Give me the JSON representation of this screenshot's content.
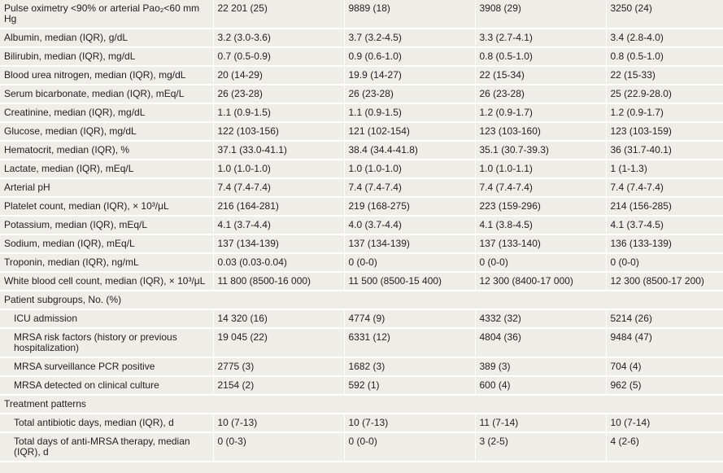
{
  "table": {
    "rows": [
      [
        "Pulse oximetry <90% or arterial Pao₂<60 mm Hg",
        "22 201 (25)",
        "9889 (18)",
        "3908 (29)",
        "3250 (24)"
      ],
      [
        "Albumin, median (IQR), g/dL",
        "3.2 (3.0-3.6)",
        "3.7 (3.2-4.5)",
        "3.3 (2.7-4.1)",
        "3.4 (2.8-4.0)"
      ],
      [
        "Bilirubin, median (IQR), mg/dL",
        "0.7 (0.5-0.9)",
        "0.9 (0.6-1.0)",
        "0.8 (0.5-1.0)",
        "0.8 (0.5-1.0)"
      ],
      [
        "Blood urea nitrogen, median (IQR), mg/dL",
        "20 (14-29)",
        "19.9 (14-27)",
        "22 (15-34)",
        "22 (15-33)"
      ],
      [
        "Serum bicarbonate, median (IQR), mEq/L",
        "26 (23-28)",
        "26 (23-28)",
        "26 (23-28)",
        "25 (22.9-28.0)"
      ],
      [
        "Creatinine, median (IQR), mg/dL",
        "1.1 (0.9-1.5)",
        "1.1 (0.9-1.5)",
        "1.2 (0.9-1.7)",
        "1.2 (0.9-1.7)"
      ],
      [
        "Glucose, median (IQR), mg/dL",
        "122 (103-156)",
        "121 (102-154)",
        "123 (103-160)",
        "123 (103-159)"
      ],
      [
        "Hematocrit, median (IQR), %",
        "37.1 (33.0-41.1)",
        "38.4 (34.4-41.8)",
        "35.1 (30.7-39.3)",
        "36 (31.7-40.1)"
      ],
      [
        "Lactate, median (IQR), mEq/L",
        "1.0 (1.0-1.0)",
        "1.0 (1.0-1.0)",
        "1.0 (1.0-1.1)",
        "1 (1-1.3)"
      ],
      [
        "Arterial pH",
        "7.4 (7.4-7.4)",
        "7.4 (7.4-7.4)",
        "7.4 (7.4-7.4)",
        "7.4 (7.4-7.4)"
      ],
      [
        "Platelet count, median (IQR), × 10³/μL",
        "216 (164-281)",
        "219 (168-275)",
        "223 (159-296)",
        "214 (156-285)"
      ],
      [
        "Potassium, median (IQR), mEq/L",
        "4.1 (3.7-4.4)",
        "4.0 (3.7-4.4)",
        "4.1 (3.8-4.5)",
        "4.1 (3.7-4.5)"
      ],
      [
        "Sodium, median (IQR), mEq/L",
        "137 (134-139)",
        "137 (134-139)",
        "137 (133-140)",
        "136 (133-139)"
      ],
      [
        "Troponin, median (IQR), ng/mL",
        "0.03 (0.03-0.04)",
        "0 (0-0)",
        "0 (0-0)",
        "0 (0-0)"
      ],
      [
        "White blood cell count, median (IQR), × 10³/μL",
        "11 800 (8500-16 000)",
        "11 500 (8500-15 400)",
        "12 300 (8400-17 000)",
        "12 300 (8500-17 200)"
      ]
    ],
    "sections": [
      {
        "title": "Patient subgroups, No. (%)",
        "rows": [
          [
            "ICU admission",
            "14 320 (16)",
            "4774 (9)",
            "4332 (32)",
            "5214 (26)"
          ],
          [
            "MRSA risk factors (history or previous hospitalization)",
            "19 045 (22)",
            "6331 (12)",
            "4804 (36)",
            "9484 (47)"
          ],
          [
            "MRSA surveillance PCR positive",
            "2775 (3)",
            "1682 (3)",
            "389 (3)",
            "704 (4)"
          ],
          [
            "MRSA detected on clinical culture",
            "2154 (2)",
            "592 (1)",
            "600 (4)",
            "962 (5)"
          ]
        ]
      },
      {
        "title": "Treatment patterns",
        "rows": [
          [
            "Total antibiotic days, median (IQR), d",
            "10 (7-13)",
            "10 (7-13)",
            "11 (7-14)",
            "10 (7-14)"
          ],
          [
            "Total days of anti-MRSA therapy, median (IQR), d",
            "0 (0-3)",
            "0 (0-0)",
            "3 (2-5)",
            "4 (2-6)"
          ]
        ]
      }
    ]
  }
}
